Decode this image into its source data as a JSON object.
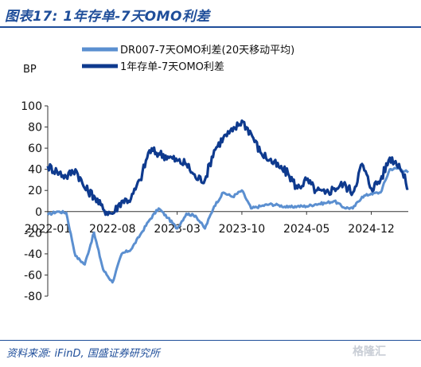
{
  "header": {
    "title": "图表17:  1年存单-7天OMO利差"
  },
  "footer": {
    "source": "资料来源:  iFinD,  国盛证券研究所",
    "watermark": "格隆汇"
  },
  "chart_data": {
    "type": "line",
    "title": "图表17:  1年存单-7天OMO利差",
    "ylabel": "BP",
    "ylim": [
      -80,
      100
    ],
    "yticks": [
      100,
      80,
      60,
      40,
      20,
      0,
      -20,
      -40,
      -60,
      -80
    ],
    "xticks": [
      "2022-01",
      "2022-08",
      "2023-03",
      "2023-10",
      "2024-05",
      "2024-12"
    ],
    "xrange": [
      "2022-01",
      "2025-04"
    ],
    "grid": false,
    "legend": "top",
    "series": [
      {
        "name": "DR007-7天OMO利差(20天移动平均)",
        "color": "#5b8fd0",
        "x": [
          "2022-01",
          "2022-02",
          "2022-03",
          "2022-04",
          "2022-05",
          "2022-06",
          "2022-07",
          "2022-08",
          "2022-09",
          "2022-10",
          "2022-11",
          "2022-12",
          "2023-01",
          "2023-02",
          "2023-03",
          "2023-04",
          "2023-05",
          "2023-06",
          "2023-07",
          "2023-08",
          "2023-09",
          "2023-10",
          "2023-11",
          "2023-12",
          "2024-01",
          "2024-02",
          "2024-03",
          "2024-04",
          "2024-05",
          "2024-06",
          "2024-07",
          "2024-08",
          "2024-09",
          "2024-10",
          "2024-11",
          "2024-12",
          "2025-01",
          "2025-02",
          "2025-03",
          "2025-04"
        ],
        "values": [
          -3,
          0,
          -1,
          -42,
          -50,
          -20,
          -55,
          -67,
          -40,
          -36,
          -22,
          -8,
          3,
          -6,
          -16,
          -2,
          -4,
          -16,
          5,
          18,
          14,
          20,
          3,
          5,
          7,
          6,
          4,
          5,
          5,
          7,
          8,
          10,
          4,
          3,
          14,
          17,
          18,
          40,
          41,
          37
        ]
      },
      {
        "name": "1年存单-7天OMO利差",
        "color": "#0e3a8e",
        "x": [
          "2022-01",
          "2022-02",
          "2022-03",
          "2022-04",
          "2022-05",
          "2022-06",
          "2022-07",
          "2022-08",
          "2022-09",
          "2022-10",
          "2022-11",
          "2022-12",
          "2023-01",
          "2023-02",
          "2023-03",
          "2023-04",
          "2023-05",
          "2023-06",
          "2023-07",
          "2023-08",
          "2023-09",
          "2023-10",
          "2023-11",
          "2023-12",
          "2024-01",
          "2024-02",
          "2024-03",
          "2024-04",
          "2024-05",
          "2024-06",
          "2024-07",
          "2024-08",
          "2024-09",
          "2024-10",
          "2024-11",
          "2024-12",
          "2025-01",
          "2025-02",
          "2025-03",
          "2025-04"
        ],
        "values": [
          43,
          38,
          33,
          40,
          22,
          15,
          2,
          -2,
          10,
          12,
          30,
          58,
          55,
          52,
          48,
          45,
          32,
          30,
          58,
          70,
          76,
          86,
          74,
          56,
          49,
          42,
          36,
          22,
          30,
          20,
          17,
          22,
          26,
          18,
          45,
          22,
          30,
          51,
          45,
          22
        ]
      }
    ]
  }
}
